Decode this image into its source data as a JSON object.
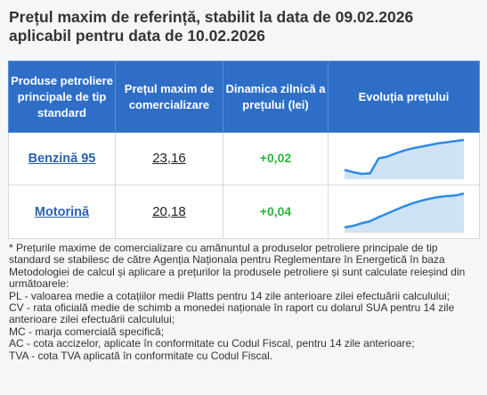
{
  "title_line1": "Prețul maxim de referință, stabilit la data de 09.02.2026",
  "title_line2": "aplicabil pentru data de 10.02.2026",
  "table": {
    "headers": [
      "Produse petroliere principale de tip standard",
      "Prețul maxim de comercializare",
      "Dinamica zilnică a prețului (lei)",
      "Evoluția prețului"
    ],
    "rows": [
      {
        "product": "Benzină 95",
        "price": "23,16",
        "change": "+0,02",
        "trend": [
          22.62,
          22.58,
          22.55,
          22.56,
          22.83,
          22.86,
          22.92,
          22.97,
          23.01,
          23.04,
          23.07,
          23.1,
          23.12,
          23.14,
          23.16
        ]
      },
      {
        "product": "Motorină",
        "price": "20,18",
        "change": "+0,04",
        "trend": [
          19.52,
          19.55,
          19.6,
          19.64,
          19.72,
          19.79,
          19.86,
          19.93,
          19.99,
          20.04,
          20.08,
          20.11,
          20.13,
          20.14,
          20.18
        ]
      }
    ]
  },
  "colors": {
    "header_bg": "#2e6ec6",
    "positive": "#2db43d",
    "link": "#2a62b0",
    "spark_line": "#2d8ae5",
    "spark_fill": "#cfe3f7"
  },
  "notes": [
    "* Prețurile maxime de comercializare cu amănuntul a produselor petroliere principale de tip standard se stabilesc de către Agenția Naționala pentru Reglementare în Energetică în baza Metodologiei de calcul și aplicare a prețurilor la produsele petroliere și sunt calculate reieșind din următoarele:",
    "PL - valoarea medie a cotațiilor medii Platts pentru 14 zile anterioare zilei efectuării calculului;",
    "CV - rata oficială medie de schimb a monedei naționale în raport cu dolarul SUA pentru 14 zile anterioare zilei efectuării calculului;",
    "MC - marja comercială specifică;",
    "AC - cota accizelor, aplicate în conformitate cu Codul Fiscal, pentru 14 zile anterioare;",
    "TVA - cota TVA aplicată în conformitate cu Codul Fiscal."
  ]
}
